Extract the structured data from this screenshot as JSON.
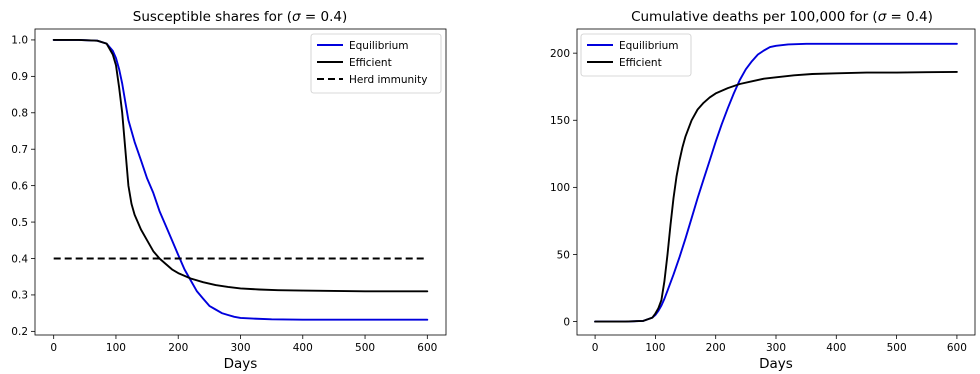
{
  "chart_data": [
    {
      "type": "line",
      "title_prefix": "Susceptible shares for (",
      "title_sigma": "σ",
      "title_suffix": " = 0.4)",
      "xlabel": "Days",
      "ylabel": "",
      "xlim": [
        -30,
        630
      ],
      "ylim": [
        0.19,
        1.03
      ],
      "xticks": [
        0,
        100,
        200,
        300,
        400,
        500,
        600
      ],
      "yticks": [
        0.2,
        0.3,
        0.4,
        0.5,
        0.6,
        0.7,
        0.8,
        0.9,
        1.0
      ],
      "ytick_labels": [
        "0.2",
        "0.3",
        "0.4",
        "0.5",
        "0.6",
        "0.7",
        "0.8",
        "0.9",
        "1.0"
      ],
      "legend_position": "top-right",
      "series": [
        {
          "name": "Equilibrium",
          "color": "#0000dd",
          "dash": "solid",
          "x": [
            0,
            40,
            70,
            85,
            95,
            100,
            105,
            110,
            115,
            120,
            130,
            140,
            150,
            160,
            170,
            180,
            190,
            200,
            210,
            220,
            230,
            240,
            250,
            260,
            270,
            280,
            290,
            300,
            320,
            350,
            400,
            450,
            500,
            550,
            600
          ],
          "y": [
            1.0,
            1.0,
            0.998,
            0.99,
            0.97,
            0.95,
            0.92,
            0.88,
            0.83,
            0.78,
            0.72,
            0.67,
            0.62,
            0.58,
            0.53,
            0.49,
            0.45,
            0.41,
            0.37,
            0.34,
            0.31,
            0.29,
            0.27,
            0.26,
            0.25,
            0.245,
            0.24,
            0.237,
            0.235,
            0.233,
            0.232,
            0.232,
            0.232,
            0.232,
            0.232
          ]
        },
        {
          "name": "Efficient",
          "color": "#000000",
          "dash": "solid",
          "x": [
            0,
            40,
            70,
            85,
            95,
            100,
            105,
            110,
            115,
            120,
            125,
            130,
            135,
            140,
            150,
            160,
            170,
            180,
            190,
            200,
            220,
            240,
            260,
            280,
            300,
            330,
            360,
            400,
            450,
            500,
            550,
            600
          ],
          "y": [
            1.0,
            1.0,
            0.998,
            0.99,
            0.96,
            0.93,
            0.87,
            0.8,
            0.7,
            0.6,
            0.55,
            0.52,
            0.5,
            0.48,
            0.45,
            0.42,
            0.4,
            0.385,
            0.37,
            0.36,
            0.345,
            0.335,
            0.327,
            0.322,
            0.318,
            0.315,
            0.313,
            0.312,
            0.311,
            0.31,
            0.31,
            0.31
          ]
        },
        {
          "name": "Herd immunity",
          "color": "#000000",
          "dash": "dashed",
          "x": [
            0,
            600
          ],
          "y": [
            0.4,
            0.4
          ]
        }
      ]
    },
    {
      "type": "line",
      "title_prefix": "Cumulative deaths per 100,000 for (",
      "title_sigma": "σ",
      "title_suffix": " = 0.4)",
      "xlabel": "Days",
      "ylabel": "",
      "xlim": [
        -30,
        630
      ],
      "ylim": [
        -10,
        218
      ],
      "xticks": [
        0,
        100,
        200,
        300,
        400,
        500,
        600
      ],
      "yticks": [
        0,
        50,
        100,
        150,
        200
      ],
      "ytick_labels": [
        "0",
        "50",
        "100",
        "150",
        "200"
      ],
      "legend_position": "top-left",
      "series": [
        {
          "name": "Equilibrium",
          "color": "#0000dd",
          "dash": "solid",
          "x": [
            0,
            50,
            80,
            95,
            100,
            105,
            110,
            115,
            120,
            130,
            140,
            150,
            160,
            170,
            180,
            190,
            200,
            210,
            220,
            230,
            240,
            250,
            260,
            270,
            280,
            290,
            300,
            320,
            350,
            400,
            450,
            500,
            550,
            600
          ],
          "y": [
            0,
            0,
            0.5,
            3,
            5,
            8,
            12,
            17,
            23,
            35,
            48,
            62,
            77,
            92,
            106,
            120,
            134,
            147,
            159,
            170,
            180,
            188,
            194,
            199,
            202,
            204.5,
            205.5,
            206.5,
            207,
            207,
            207,
            207,
            207,
            207
          ]
        },
        {
          "name": "Efficient",
          "color": "#000000",
          "dash": "solid",
          "x": [
            0,
            50,
            80,
            95,
            100,
            105,
            110,
            115,
            120,
            125,
            130,
            135,
            140,
            145,
            150,
            160,
            170,
            180,
            190,
            200,
            220,
            240,
            260,
            280,
            300,
            330,
            360,
            400,
            450,
            500,
            550,
            600
          ],
          "y": [
            0,
            0,
            0.5,
            3,
            6,
            10,
            16,
            30,
            50,
            72,
            92,
            108,
            120,
            130,
            138,
            150,
            158,
            163,
            167,
            170,
            174,
            177,
            179,
            181,
            182,
            183.5,
            184.5,
            185,
            185.5,
            185.5,
            185.8,
            186
          ]
        }
      ]
    }
  ]
}
